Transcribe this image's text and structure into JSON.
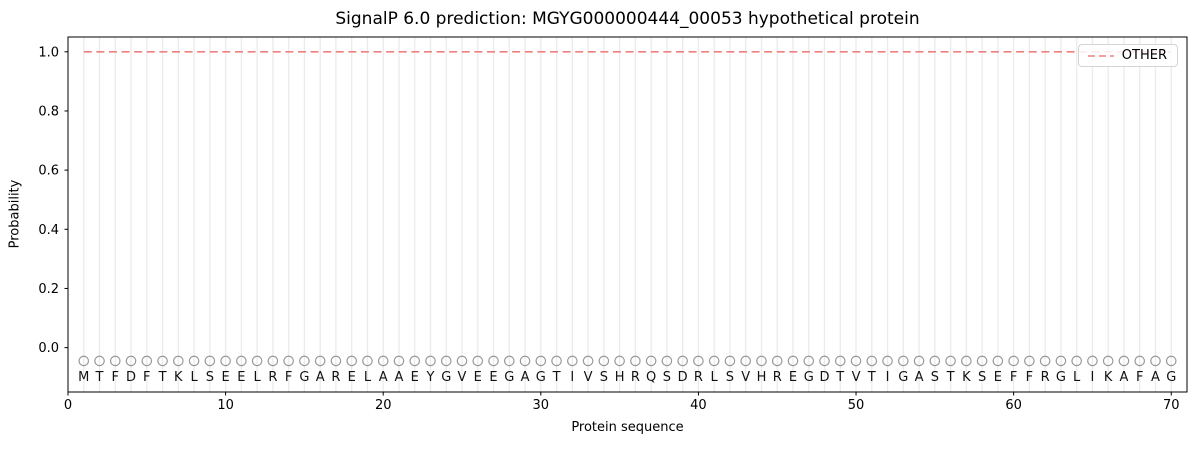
{
  "chart_data": {
    "type": "line",
    "title": "SignalP 6.0 prediction: MGYG000000444_00053 hypothetical protein",
    "xlabel": "Protein sequence",
    "ylabel": "Probability",
    "xlim": [
      0,
      71
    ],
    "ylim": [
      -0.15,
      1.05
    ],
    "xticks": [
      0,
      10,
      20,
      30,
      40,
      50,
      60,
      70
    ],
    "yticks": [
      0.0,
      0.2,
      0.4,
      0.6,
      0.8,
      1.0
    ],
    "grid": {
      "vertical_line_per_residue": true,
      "color": "#ebebeb"
    },
    "legend": {
      "position": "upper right",
      "entries": [
        {
          "label": "OTHER",
          "color": "#f08080",
          "linestyle": "dashed"
        }
      ]
    },
    "sequence": "MTFDFTKLSEELRFGARELAAEYGVEEGAGTIVSHRQSDRLSVHREGDTVTIGASTKSEFFRGLIKAFAG",
    "sequence_length": 70,
    "series": [
      {
        "name": "OTHER",
        "color": "#f08080",
        "linestyle": "dashed",
        "x_start": 1,
        "x_end": 70,
        "y_constant": 1.0
      }
    ],
    "residue_markers": {
      "shape": "open-circle",
      "color": "#999999",
      "y": -0.045
    },
    "colors": {
      "other_line": "#f08080",
      "gridline": "#ebebeb",
      "marker": "#999999",
      "axis": "#000000",
      "letter": "#111111"
    }
  }
}
